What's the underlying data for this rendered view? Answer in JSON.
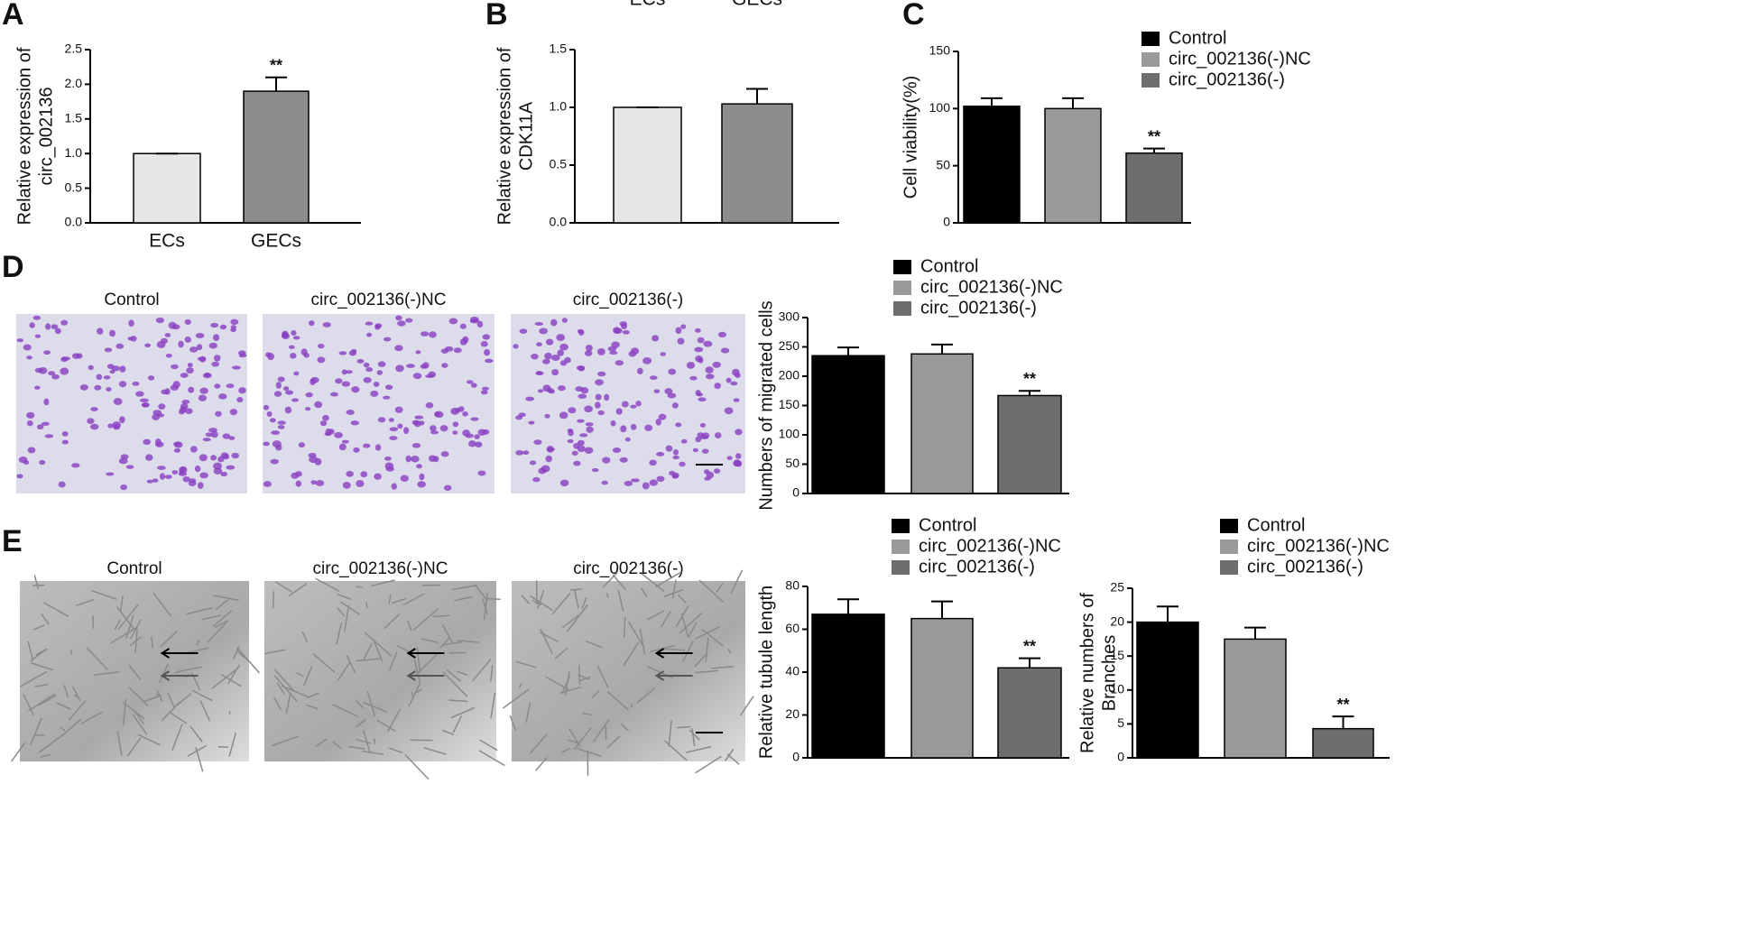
{
  "chart_data": [
    {
      "type": "bar",
      "panel_label": "A",
      "y_label": [
        "Relative expression of",
        "circ_002136"
      ],
      "categories": [
        "ECs",
        "GECs"
      ],
      "values": [
        1.0,
        1.9
      ],
      "errors": [
        0,
        0.2
      ],
      "colors": [
        "#e6e6e6",
        "#8c8c8c"
      ],
      "significance": [
        null,
        "**"
      ],
      "ylim": [
        0,
        2.5
      ],
      "yticks": [
        {
          "value": 0,
          "label": "0.0"
        },
        0.5,
        {
          "value": 1,
          "label": "1.0"
        },
        1.5,
        {
          "value": 2,
          "label": "2.0"
        },
        2.5
      ]
    },
    {
      "type": "bar",
      "panel_label": "B",
      "y_label": [
        "Relative expression of",
        "CDK11A"
      ],
      "categories": [
        "ECs",
        "GECs"
      ],
      "values": [
        1.0,
        1.03
      ],
      "errors": [
        0,
        0.13
      ],
      "colors": [
        "#e6e6e6",
        "#8c8c8c"
      ],
      "ylim": [
        0,
        1.5
      ],
      "yticks": [
        {
          "value": 0,
          "label": "0.0"
        },
        0.5,
        {
          "value": 1,
          "label": "1.0"
        },
        1.5
      ]
    },
    {
      "type": "bar",
      "panel_label": "C",
      "y_label": [
        "Cell viability(%)"
      ],
      "series": [
        {
          "name": "Control",
          "color": "#000000",
          "values": [
            102
          ],
          "errors": [
            7
          ]
        },
        {
          "name": "circ_002136(-)NC",
          "color": "#9a9a9a",
          "values": [
            100
          ],
          "errors": [
            9
          ]
        },
        {
          "name": "circ_002136(-)",
          "color": "#6e6e6e",
          "values": [
            61
          ],
          "errors": [
            4
          ],
          "significance": [
            "**"
          ]
        }
      ],
      "ylim": [
        0,
        150
      ],
      "yticks": [
        0,
        50,
        100,
        150
      ]
    },
    {
      "type": "bar",
      "panel_label": "D",
      "y_label": [
        "Numbers of migrated cells"
      ],
      "images": [
        "Control",
        "circ_002136(-)NC",
        "circ_002136(-)"
      ],
      "series": [
        {
          "name": "Control",
          "color": "#000000",
          "values": [
            235
          ],
          "errors": [
            14
          ]
        },
        {
          "name": "circ_002136(-)NC",
          "color": "#9a9a9a",
          "values": [
            238
          ],
          "errors": [
            16
          ]
        },
        {
          "name": "circ_002136(-)",
          "color": "#6e6e6e",
          "values": [
            167
          ],
          "errors": [
            8
          ],
          "significance": [
            "**"
          ]
        }
      ],
      "ylim": [
        0,
        300
      ],
      "yticks": [
        0,
        50,
        100,
        150,
        200,
        250,
        300
      ]
    },
    {
      "type": "bar",
      "panel_label": "E",
      "y_label": [
        "Relative tubule length"
      ],
      "images": [
        "Control",
        "circ_002136(-)NC",
        "circ_002136(-)"
      ],
      "series": [
        {
          "name": "Control",
          "color": "#000000",
          "values": [
            67
          ],
          "errors": [
            7
          ]
        },
        {
          "name": "circ_002136(-)NC",
          "color": "#9a9a9a",
          "values": [
            65
          ],
          "errors": [
            8
          ]
        },
        {
          "name": "circ_002136(-)",
          "color": "#6e6e6e",
          "values": [
            42
          ],
          "errors": [
            4.5
          ],
          "significance": [
            "**"
          ]
        }
      ],
      "ylim": [
        0,
        80
      ],
      "yticks": [
        0,
        20,
        40,
        60,
        80
      ]
    },
    {
      "type": "bar",
      "y_label": [
        "Relative numbers of",
        "Branches"
      ],
      "series": [
        {
          "name": "Control",
          "color": "#000000",
          "values": [
            20
          ],
          "errors": [
            2.3
          ]
        },
        {
          "name": "circ_002136(-)NC",
          "color": "#9a9a9a",
          "values": [
            17.5
          ],
          "errors": [
            1.7
          ]
        },
        {
          "name": "circ_002136(-)",
          "color": "#6e6e6e",
          "values": [
            4.3
          ],
          "errors": [
            1.8
          ],
          "significance": [
            "**"
          ]
        }
      ],
      "ylim": [
        0,
        25
      ],
      "yticks": [
        0,
        5,
        10,
        15,
        20,
        25
      ]
    }
  ]
}
